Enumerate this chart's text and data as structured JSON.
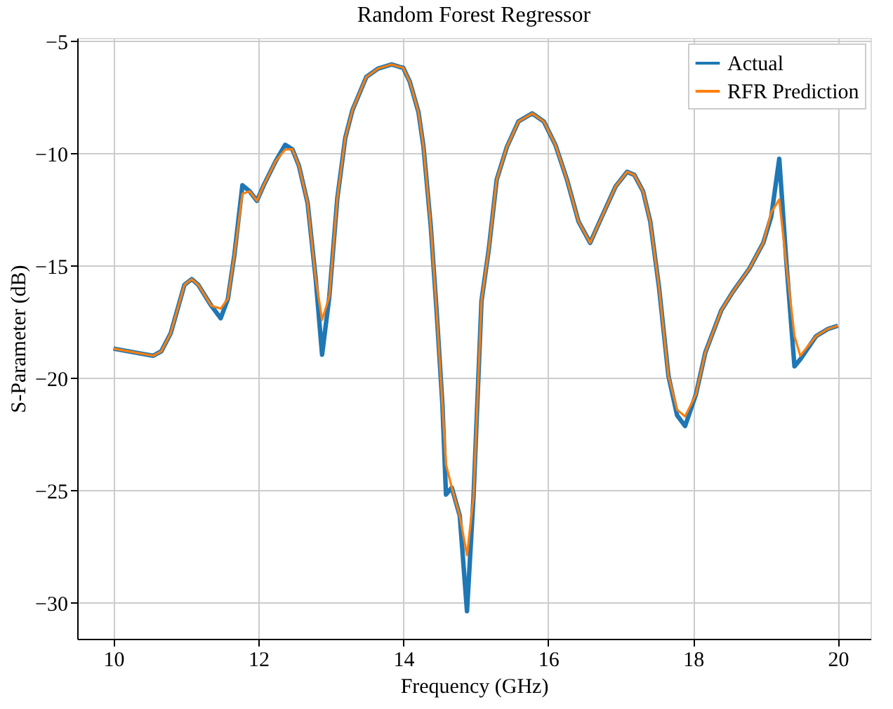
{
  "chart_data": {
    "type": "line",
    "title": "Random Forest Regressor",
    "xlabel": "Frequency (GHz)",
    "ylabel": "S-Parameter (dB)",
    "x": [
      10.0,
      10.55,
      10.66,
      10.79,
      10.98,
      11.08,
      11.17,
      11.35,
      11.48,
      11.58,
      11.67,
      11.78,
      11.88,
      11.98,
      12.08,
      12.24,
      12.37,
      12.47,
      12.56,
      12.68,
      12.79,
      12.88,
      12.98,
      13.09,
      13.2,
      13.3,
      13.49,
      13.65,
      13.84,
      13.95,
      14.0,
      14.09,
      14.21,
      14.28,
      14.38,
      14.46,
      14.54,
      14.59,
      14.67,
      14.78,
      14.88,
      14.97,
      15.08,
      15.18,
      15.29,
      15.43,
      15.59,
      15.78,
      15.94,
      16.1,
      16.26,
      16.42,
      16.58,
      16.74,
      16.93,
      17.09,
      17.19,
      17.31,
      17.41,
      17.53,
      17.66,
      17.78,
      17.89,
      18.04,
      18.17,
      18.39,
      18.55,
      18.78,
      18.97,
      19.08,
      19.19,
      19.29,
      19.4,
      19.48,
      19.7,
      19.86,
      20.0
    ],
    "series": [
      {
        "name": "Actual",
        "color": "#1f77b4",
        "values": [
          -18.68,
          -19.0,
          -18.8,
          -18.0,
          -15.84,
          -15.59,
          -15.84,
          -16.77,
          -17.33,
          -16.46,
          -14.49,
          -11.41,
          -11.68,
          -12.1,
          -11.37,
          -10.33,
          -9.61,
          -9.81,
          -10.54,
          -12.2,
          -15.52,
          -18.95,
          -16.36,
          -11.99,
          -9.3,
          -8.05,
          -6.59,
          -6.22,
          -6.03,
          -6.14,
          -6.18,
          -6.8,
          -8.15,
          -9.71,
          -13.24,
          -16.98,
          -21.13,
          -25.18,
          -24.87,
          -26.12,
          -30.37,
          -25.28,
          -16.56,
          -14.28,
          -11.16,
          -9.71,
          -8.57,
          -8.21,
          -8.57,
          -9.61,
          -11.16,
          -13.03,
          -13.97,
          -12.82,
          -11.47,
          -10.81,
          -10.95,
          -11.68,
          -13.03,
          -15.94,
          -19.89,
          -21.65,
          -22.13,
          -20.72,
          -18.85,
          -16.98,
          -16.15,
          -15.11,
          -13.97,
          -12.8,
          -10.23,
          -14.9,
          -19.47,
          -19.16,
          -18.12,
          -17.81,
          -17.66
        ]
      },
      {
        "name": "RFR Prediction",
        "color": "#ff7f0e",
        "values": [
          -18.68,
          -19.0,
          -18.8,
          -18.0,
          -15.84,
          -15.59,
          -15.84,
          -16.77,
          -16.9,
          -16.46,
          -14.49,
          -11.79,
          -11.68,
          -12.1,
          -11.37,
          -10.33,
          -9.82,
          -9.81,
          -10.54,
          -12.2,
          -15.52,
          -17.4,
          -16.36,
          -11.99,
          -9.3,
          -8.05,
          -6.59,
          -6.22,
          -6.03,
          -6.14,
          -6.18,
          -6.8,
          -8.15,
          -9.71,
          -13.24,
          -16.98,
          -21.13,
          -23.83,
          -24.87,
          -26.12,
          -27.88,
          -25.28,
          -16.56,
          -14.28,
          -11.16,
          -9.71,
          -8.57,
          -8.21,
          -8.57,
          -9.61,
          -11.16,
          -13.03,
          -13.97,
          -12.82,
          -11.47,
          -10.81,
          -10.95,
          -11.68,
          -13.03,
          -15.94,
          -19.89,
          -21.4,
          -21.7,
          -20.72,
          -18.85,
          -16.98,
          -16.15,
          -15.11,
          -13.97,
          -12.62,
          -12.04,
          -15.0,
          -18.12,
          -19.0,
          -18.12,
          -17.81,
          -17.66
        ]
      }
    ],
    "xlim": [
      9.5,
      20.45
    ],
    "ylim": [
      -31.6,
      -4.85
    ],
    "xticks": [
      10,
      12,
      14,
      16,
      18,
      20
    ],
    "yticks": [
      -30,
      -25,
      -20,
      -15,
      -10,
      -5
    ],
    "grid": true,
    "legend": "top right",
    "line_style": "solid",
    "marker": "none"
  }
}
